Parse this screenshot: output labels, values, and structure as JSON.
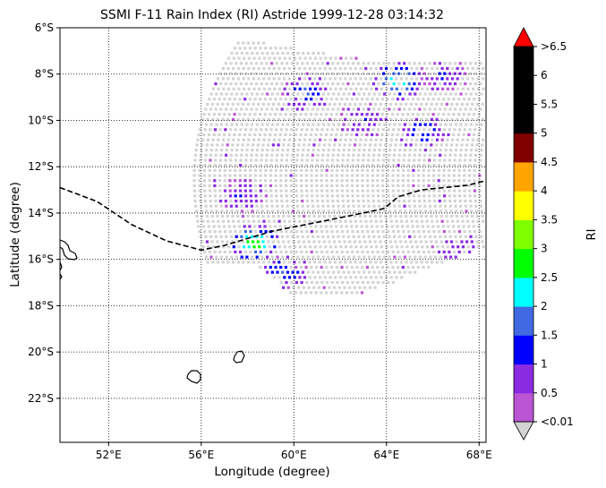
{
  "title": "SSMI F-11 Rain Index (RI) Astride 1999-12-28 03:14:32",
  "x_axis": {
    "label": "Longitude (degree)",
    "range": [
      49.9,
      68.3
    ],
    "ticks": [
      {
        "value": 52,
        "label": "52°E"
      },
      {
        "value": 56,
        "label": "56°E"
      },
      {
        "value": 60,
        "label": "60°E"
      },
      {
        "value": 64,
        "label": "64°E"
      },
      {
        "value": 68,
        "label": "68°E"
      }
    ]
  },
  "y_axis": {
    "label": "Latitude (degree)",
    "range": [
      -23.9,
      -6.0
    ],
    "ticks": [
      {
        "value": -6,
        "label": "6°S"
      },
      {
        "value": -8,
        "label": "8°S"
      },
      {
        "value": -10,
        "label": "10°S"
      },
      {
        "value": -12,
        "label": "12°S"
      },
      {
        "value": -14,
        "label": "14°S"
      },
      {
        "value": -16,
        "label": "16°S"
      },
      {
        "value": -18,
        "label": "18°S"
      },
      {
        "value": -20,
        "label": "20°S"
      },
      {
        "value": -22,
        "label": "22°S"
      }
    ]
  },
  "grid": "dotted",
  "colorbar": {
    "label": "RI",
    "tick_labels": [
      ">6.5",
      "6",
      "5.5",
      "5",
      "4.5",
      "4",
      "3.5",
      "3",
      "2.5",
      "2",
      "1.5",
      "1",
      "0.5",
      "<0.01"
    ],
    "colors_bottom_to_top": [
      "#ba55d3",
      "#8a2be2",
      "#0000ff",
      "#4169e1",
      "#00ffff",
      "#00ff00",
      "#7fff00",
      "#ffff00",
      "#ffa500",
      "#800000",
      "#000000",
      "#000000",
      "#000000"
    ],
    "under_color": "#d3d3d3",
    "over_color": "#ff0000"
  },
  "chart_data": {
    "type": "scatter",
    "swath": {
      "description": "satellite swath of rain-index pixels",
      "lon_range": [
        55.7,
        68.2
      ],
      "lat_range": [
        -17.5,
        -6.0
      ]
    },
    "rain_clusters": [
      {
        "lon": 60.5,
        "lat": -8.8,
        "max_ri": 1.5
      },
      {
        "lon": 64.5,
        "lat": -8.3,
        "max_ri": 2.5
      },
      {
        "lon": 65.5,
        "lat": -10.5,
        "max_ri": 1.5
      },
      {
        "lon": 66.5,
        "lat": -8.0,
        "max_ri": 1.0
      },
      {
        "lon": 58.3,
        "lat": -15.3,
        "max_ri": 3.0
      },
      {
        "lon": 59.5,
        "lat": -16.5,
        "max_ri": 1.5
      },
      {
        "lon": 57.8,
        "lat": -13.2,
        "max_ri": 1.0
      },
      {
        "lon": 63.0,
        "lat": -10.0,
        "max_ri": 1.0
      },
      {
        "lon": 67.0,
        "lat": -15.5,
        "max_ri": 1.0
      }
    ],
    "track": {
      "style": "dashed",
      "lon": [
        49.9,
        51.5,
        53.0,
        54.5,
        56.0,
        57.0,
        58.0,
        59.0,
        60.0,
        61.0,
        62.0,
        63.0,
        63.9,
        64.5,
        65.5,
        66.5,
        67.5,
        68.3
      ],
      "lat": [
        -12.9,
        -13.5,
        -14.5,
        -15.2,
        -15.6,
        -15.4,
        -15.1,
        -14.8,
        -14.6,
        -14.4,
        -14.2,
        -14.0,
        -13.8,
        -13.3,
        -13.0,
        -12.9,
        -12.8,
        -12.6
      ]
    }
  }
}
